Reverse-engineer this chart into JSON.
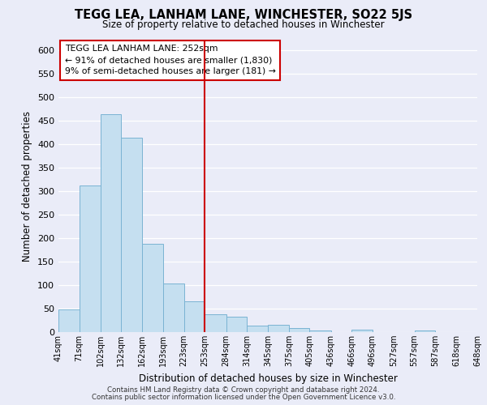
{
  "title": "TEGG LEA, LANHAM LANE, WINCHESTER, SO22 5JS",
  "subtitle": "Size of property relative to detached houses in Winchester",
  "xlabel": "Distribution of detached houses by size in Winchester",
  "ylabel": "Number of detached properties",
  "bar_color": "#c5dff0",
  "bar_edge_color": "#7ab3d3",
  "background_color": "#eaecf8",
  "grid_color": "#ffffff",
  "bin_edges": [
    41,
    71,
    102,
    132,
    162,
    193,
    223,
    253,
    284,
    314,
    345,
    375,
    405,
    436,
    466,
    496,
    527,
    557,
    587,
    618,
    648
  ],
  "bar_heights": [
    48,
    311,
    464,
    414,
    188,
    104,
    66,
    38,
    32,
    14,
    15,
    8,
    3,
    0,
    5,
    0,
    0,
    3,
    0,
    0
  ],
  "tick_labels": [
    "41sqm",
    "71sqm",
    "102sqm",
    "132sqm",
    "162sqm",
    "193sqm",
    "223sqm",
    "253sqm",
    "284sqm",
    "314sqm",
    "345sqm",
    "375sqm",
    "405sqm",
    "436sqm",
    "466sqm",
    "496sqm",
    "527sqm",
    "557sqm",
    "587sqm",
    "618sqm",
    "648sqm"
  ],
  "vline_x": 253,
  "vline_color": "#cc0000",
  "legend_title": "TEGG LEA LANHAM LANE: 252sqm",
  "legend_line1": "← 91% of detached houses are smaller (1,830)",
  "legend_line2": "9% of semi-detached houses are larger (181) →",
  "legend_box_color": "#ffffff",
  "legend_box_edge": "#cc0000",
  "footnote1": "Contains HM Land Registry data © Crown copyright and database right 2024.",
  "footnote2": "Contains public sector information licensed under the Open Government Licence v3.0.",
  "ylim": [
    0,
    620
  ],
  "yticks": [
    0,
    50,
    100,
    150,
    200,
    250,
    300,
    350,
    400,
    450,
    500,
    550,
    600
  ]
}
